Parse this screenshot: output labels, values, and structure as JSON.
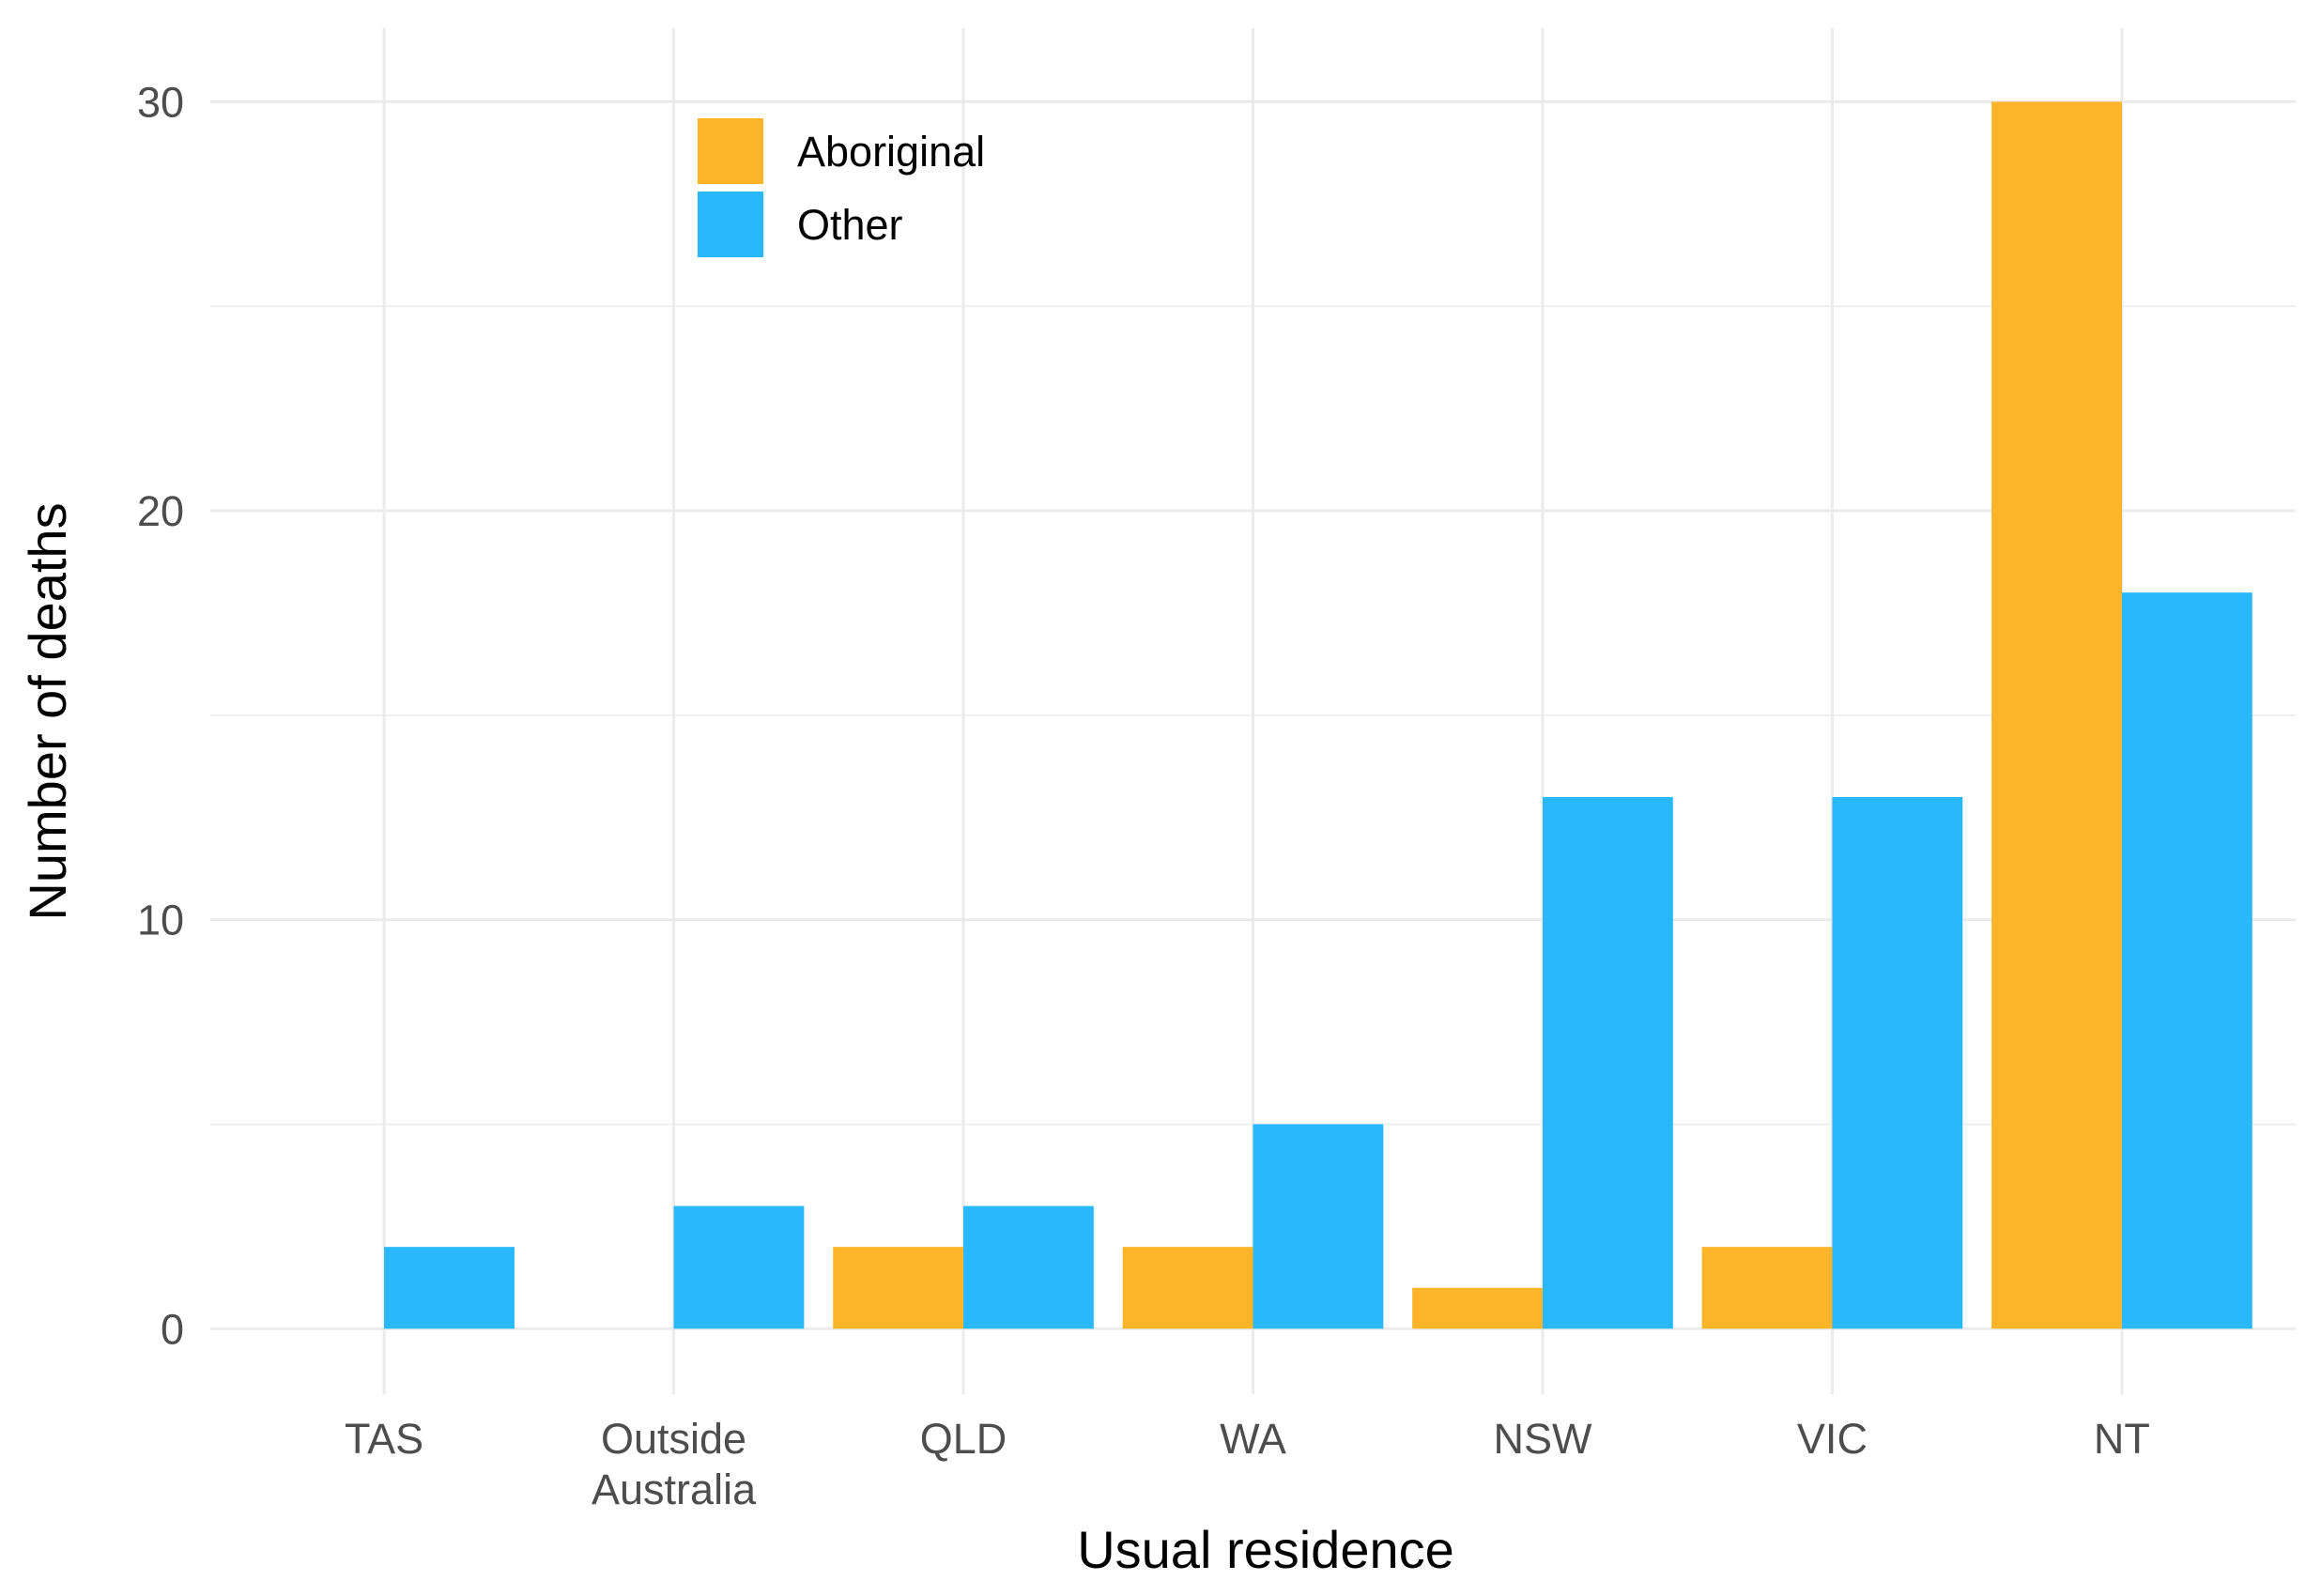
{
  "chart_data": {
    "type": "bar",
    "xlabel": "Usual residence",
    "ylabel": "Number of deaths",
    "categories": [
      [
        "TAS"
      ],
      [
        "Outside",
        "Australia"
      ],
      [
        "QLD"
      ],
      [
        "WA"
      ],
      [
        "NSW"
      ],
      [
        "VIC"
      ],
      [
        "NT"
      ]
    ],
    "series": [
      {
        "name": "Aboriginal",
        "color": "#FDB428",
        "values": [
          0,
          0,
          2,
          2,
          1,
          2,
          30
        ]
      },
      {
        "name": "Other",
        "color": "#29B8FB",
        "values": [
          2,
          3,
          3,
          5,
          13,
          13,
          18
        ]
      }
    ],
    "ylim": [
      -1.6,
      31.8
    ],
    "yticks": [
      0,
      10,
      20,
      30
    ],
    "grid": true,
    "legend_position": "top-left, inside plot"
  }
}
